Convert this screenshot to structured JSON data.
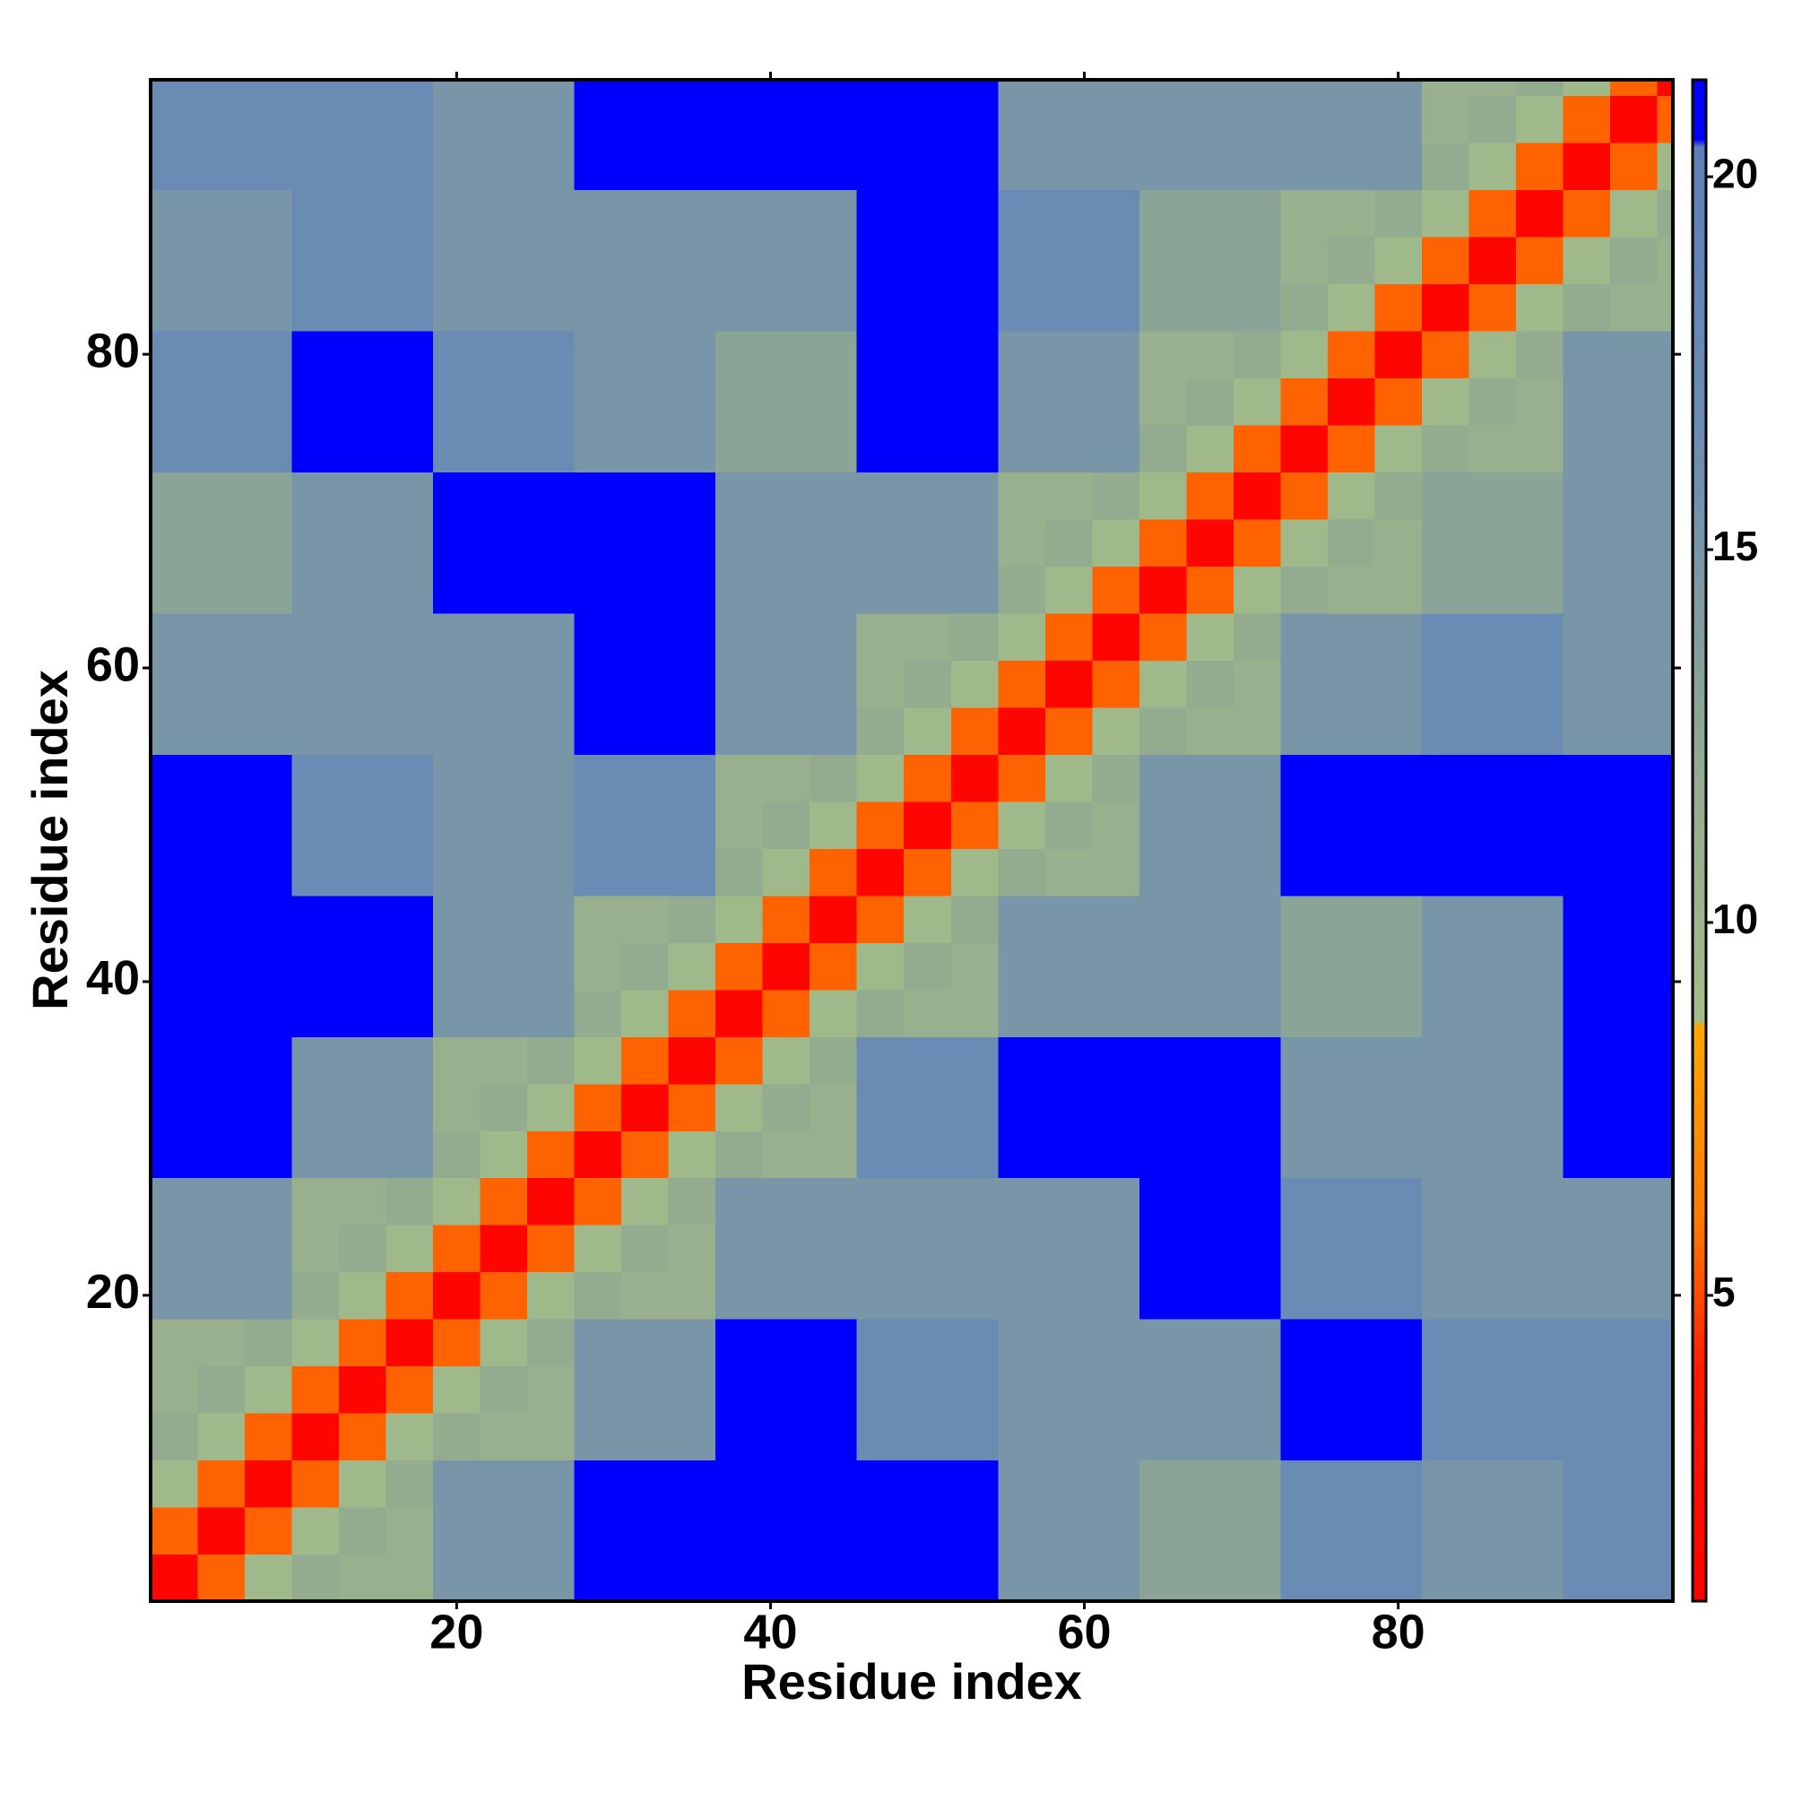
{
  "chart_data": {
    "type": "heatmap",
    "xlabel": "Residue index",
    "ylabel": "Residue index",
    "xlim": [
      0.5,
      97.5
    ],
    "ylim": [
      0.5,
      97.5
    ],
    "xticks": [
      20,
      40,
      60,
      80
    ],
    "yticks": [
      20,
      40,
      60,
      80
    ],
    "xbins": [
      0.5,
      3.5,
      6.5,
      9.5,
      12.5,
      15.5,
      18.5,
      21.5,
      24.5,
      27.5,
      30.5,
      33.5,
      36.5,
      39.5,
      42.5,
      45.5,
      48.5,
      51.5,
      54.5,
      57.5,
      60.5,
      63.5,
      66.5,
      69.5,
      72.5,
      75.5,
      78.5,
      81.5,
      84.5,
      87.5,
      90.5,
      93.5,
      96.5,
      97.5
    ],
    "ybins": [
      0.5,
      3.5,
      6.5,
      9.5,
      12.5,
      15.5,
      18.5,
      21.5,
      24.5,
      27.5,
      30.5,
      33.5,
      36.5,
      39.5,
      42.5,
      45.5,
      48.5,
      51.5,
      54.5,
      57.5,
      60.5,
      63.5,
      66.5,
      69.5,
      72.5,
      75.5,
      78.5,
      81.5,
      84.5,
      87.5,
      90.5,
      93.5,
      96.5,
      97.5
    ],
    "colorbar": {
      "clim": [
        0.9,
        21.3
      ],
      "ticks": [
        5,
        10,
        15,
        20
      ],
      "colorscale": [
        [
          0.9,
          "#ff0000"
        ],
        [
          4,
          "#ff1a00"
        ],
        [
          6,
          "#ff7a00"
        ],
        [
          8.6,
          "#ffa500"
        ],
        [
          8.7,
          "#a3bd8a"
        ],
        [
          12,
          "#93ab8f"
        ],
        [
          16,
          "#6f8fb0"
        ],
        [
          20.4,
          "#5a7fbb"
        ],
        [
          20.5,
          "#0000ff"
        ],
        [
          21.3,
          "#0000ff"
        ]
      ]
    },
    "z": [
      [
        1.5,
        5.5,
        9.5,
        12,
        11,
        11,
        15,
        15,
        15,
        21,
        21,
        21,
        21,
        21,
        21,
        21,
        21,
        21,
        15,
        15,
        15,
        13,
        13,
        13,
        17,
        17,
        17,
        15,
        15,
        15,
        17,
        17,
        17
      ],
      [
        5.5,
        1.5,
        5.5,
        9.5,
        12,
        11,
        15,
        15,
        15,
        21,
        21,
        21,
        21,
        21,
        21,
        21,
        21,
        21,
        15,
        15,
        15,
        13,
        13,
        13,
        17,
        17,
        17,
        15,
        15,
        15,
        17,
        17,
        17
      ],
      [
        9.5,
        5.5,
        1.5,
        5.5,
        9.5,
        12,
        15,
        15,
        15,
        21,
        21,
        21,
        21,
        21,
        21,
        21,
        21,
        21,
        15,
        15,
        15,
        13,
        13,
        13,
        17,
        17,
        17,
        15,
        15,
        15,
        17,
        17,
        17
      ],
      [
        12,
        9.5,
        5.5,
        1.5,
        5.5,
        9.5,
        12,
        11,
        11,
        15,
        15,
        15,
        21,
        21,
        21,
        17,
        17,
        17,
        15,
        15,
        15,
        15,
        15,
        15,
        21,
        21,
        21,
        17,
        17,
        17,
        17,
        17,
        17
      ],
      [
        11,
        12,
        9.5,
        5.5,
        1.5,
        5.5,
        9.5,
        12,
        11,
        15,
        15,
        15,
        21,
        21,
        21,
        17,
        17,
        17,
        15,
        15,
        15,
        15,
        15,
        15,
        21,
        21,
        21,
        17,
        17,
        17,
        17,
        17,
        17
      ],
      [
        11,
        11,
        12,
        9.5,
        5.5,
        1.5,
        5.5,
        9.5,
        12,
        15,
        15,
        15,
        21,
        21,
        21,
        17,
        17,
        17,
        15,
        15,
        15,
        15,
        15,
        15,
        21,
        21,
        21,
        17,
        17,
        17,
        17,
        17,
        17
      ],
      [
        15,
        15,
        15,
        12,
        9.5,
        5.5,
        1.5,
        5.5,
        9.5,
        12,
        11,
        11,
        15,
        15,
        15,
        15,
        15,
        15,
        15,
        15,
        15,
        21,
        21,
        21,
        17,
        17,
        17,
        15,
        15,
        15,
        15,
        15,
        15
      ],
      [
        15,
        15,
        15,
        11,
        12,
        9.5,
        5.5,
        1.5,
        5.5,
        9.5,
        12,
        11,
        15,
        15,
        15,
        15,
        15,
        15,
        15,
        15,
        15,
        21,
        21,
        21,
        17,
        17,
        17,
        15,
        15,
        15,
        15,
        15,
        15
      ],
      [
        15,
        15,
        15,
        11,
        11,
        12,
        9.5,
        5.5,
        1.5,
        5.5,
        9.5,
        12,
        15,
        15,
        15,
        15,
        15,
        15,
        15,
        15,
        15,
        21,
        21,
        21,
        17,
        17,
        17,
        15,
        15,
        15,
        15,
        15,
        15
      ],
      [
        21,
        21,
        21,
        15,
        15,
        15,
        12,
        9.5,
        5.5,
        1.5,
        5.5,
        9.5,
        12,
        11,
        11,
        17,
        17,
        17,
        21,
        21,
        21,
        21,
        21,
        21,
        15,
        15,
        15,
        15,
        15,
        15,
        21,
        21,
        21
      ],
      [
        21,
        21,
        21,
        15,
        15,
        15,
        11,
        12,
        9.5,
        5.5,
        1.5,
        5.5,
        9.5,
        12,
        11,
        17,
        17,
        17,
        21,
        21,
        21,
        21,
        21,
        21,
        15,
        15,
        15,
        15,
        15,
        15,
        21,
        21,
        21
      ],
      [
        21,
        21,
        21,
        15,
        15,
        15,
        11,
        11,
        12,
        9.5,
        5.5,
        1.5,
        5.5,
        9.5,
        12,
        17,
        17,
        17,
        21,
        21,
        21,
        21,
        21,
        21,
        15,
        15,
        15,
        15,
        15,
        15,
        21,
        21,
        21
      ],
      [
        21,
        21,
        21,
        21,
        21,
        21,
        15,
        15,
        15,
        12,
        9.5,
        5.5,
        1.5,
        5.5,
        9.5,
        12,
        11,
        11,
        15,
        15,
        15,
        15,
        15,
        15,
        13,
        13,
        13,
        15,
        15,
        15,
        21,
        21,
        21
      ],
      [
        21,
        21,
        21,
        21,
        21,
        21,
        15,
        15,
        15,
        11,
        12,
        9.5,
        5.5,
        1.5,
        5.5,
        9.5,
        12,
        11,
        15,
        15,
        15,
        15,
        15,
        15,
        13,
        13,
        13,
        15,
        15,
        15,
        21,
        21,
        21
      ],
      [
        21,
        21,
        21,
        21,
        21,
        21,
        15,
        15,
        15,
        11,
        11,
        12,
        9.5,
        5.5,
        1.5,
        5.5,
        9.5,
        12,
        15,
        15,
        15,
        15,
        15,
        15,
        13,
        13,
        13,
        15,
        15,
        15,
        21,
        21,
        21
      ],
      [
        21,
        21,
        21,
        17,
        17,
        17,
        15,
        15,
        15,
        17,
        17,
        17,
        12,
        9.5,
        5.5,
        1.5,
        5.5,
        9.5,
        12,
        11,
        11,
        15,
        15,
        15,
        21,
        21,
        21,
        21,
        21,
        21,
        21,
        21,
        21
      ],
      [
        21,
        21,
        21,
        17,
        17,
        17,
        15,
        15,
        15,
        17,
        17,
        17,
        11,
        12,
        9.5,
        5.5,
        1.5,
        5.5,
        9.5,
        12,
        11,
        15,
        15,
        15,
        21,
        21,
        21,
        21,
        21,
        21,
        21,
        21,
        21
      ],
      [
        21,
        21,
        21,
        17,
        17,
        17,
        15,
        15,
        15,
        17,
        17,
        17,
        11,
        11,
        12,
        9.5,
        5.5,
        1.5,
        5.5,
        9.5,
        12,
        15,
        15,
        15,
        21,
        21,
        21,
        21,
        21,
        21,
        21,
        21,
        21
      ],
      [
        15,
        15,
        15,
        15,
        15,
        15,
        15,
        15,
        15,
        21,
        21,
        21,
        15,
        15,
        15,
        12,
        9.5,
        5.5,
        1.5,
        5.5,
        9.5,
        12,
        11,
        11,
        15,
        15,
        15,
        17,
        17,
        17,
        15,
        15,
        15
      ],
      [
        15,
        15,
        15,
        15,
        15,
        15,
        15,
        15,
        15,
        21,
        21,
        21,
        15,
        15,
        15,
        11,
        12,
        9.5,
        5.5,
        1.5,
        5.5,
        9.5,
        12,
        11,
        15,
        15,
        15,
        17,
        17,
        17,
        15,
        15,
        15
      ],
      [
        15,
        15,
        15,
        15,
        15,
        15,
        15,
        15,
        15,
        21,
        21,
        21,
        15,
        15,
        15,
        11,
        11,
        12,
        9.5,
        5.5,
        1.5,
        5.5,
        9.5,
        12,
        15,
        15,
        15,
        17,
        17,
        17,
        15,
        15,
        15
      ],
      [
        13,
        13,
        13,
        15,
        15,
        15,
        21,
        21,
        21,
        21,
        21,
        21,
        15,
        15,
        15,
        15,
        15,
        15,
        12,
        9.5,
        5.5,
        1.5,
        5.5,
        9.5,
        12,
        11,
        11,
        13,
        13,
        13,
        15,
        15,
        15
      ],
      [
        13,
        13,
        13,
        15,
        15,
        15,
        21,
        21,
        21,
        21,
        21,
        21,
        15,
        15,
        15,
        15,
        15,
        15,
        11,
        12,
        9.5,
        5.5,
        1.5,
        5.5,
        9.5,
        12,
        11,
        13,
        13,
        13,
        15,
        15,
        15
      ],
      [
        13,
        13,
        13,
        15,
        15,
        15,
        21,
        21,
        21,
        21,
        21,
        21,
        15,
        15,
        15,
        15,
        15,
        15,
        11,
        11,
        12,
        9.5,
        5.5,
        1.5,
        5.5,
        9.5,
        12,
        13,
        13,
        13,
        15,
        15,
        15
      ],
      [
        17,
        17,
        17,
        21,
        21,
        21,
        17,
        17,
        17,
        15,
        15,
        15,
        13,
        13,
        13,
        21,
        21,
        21,
        15,
        15,
        15,
        12,
        9.5,
        5.5,
        1.5,
        5.5,
        9.5,
        12,
        11,
        11,
        15,
        15,
        15
      ],
      [
        17,
        17,
        17,
        21,
        21,
        21,
        17,
        17,
        17,
        15,
        15,
        15,
        13,
        13,
        13,
        21,
        21,
        21,
        15,
        15,
        15,
        11,
        12,
        9.5,
        5.5,
        1.5,
        5.5,
        9.5,
        12,
        11,
        15,
        15,
        15
      ],
      [
        17,
        17,
        17,
        21,
        21,
        21,
        17,
        17,
        17,
        15,
        15,
        15,
        13,
        13,
        13,
        21,
        21,
        21,
        15,
        15,
        15,
        11,
        11,
        12,
        9.5,
        5.5,
        1.5,
        5.5,
        9.5,
        12,
        15,
        15,
        15
      ],
      [
        15,
        15,
        15,
        17,
        17,
        17,
        15,
        15,
        15,
        15,
        15,
        15,
        15,
        15,
        15,
        21,
        21,
        21,
        17,
        17,
        17,
        13,
        13,
        13,
        12,
        9.5,
        5.5,
        1.5,
        5.5,
        9.5,
        12,
        11,
        11
      ],
      [
        15,
        15,
        15,
        17,
        17,
        17,
        15,
        15,
        15,
        15,
        15,
        15,
        15,
        15,
        15,
        21,
        21,
        21,
        17,
        17,
        17,
        13,
        13,
        13,
        11,
        12,
        9.5,
        5.5,
        1.5,
        5.5,
        9.5,
        12,
        11
      ],
      [
        15,
        15,
        15,
        17,
        17,
        17,
        15,
        15,
        15,
        15,
        15,
        15,
        15,
        15,
        15,
        21,
        21,
        21,
        17,
        17,
        17,
        13,
        13,
        13,
        11,
        11,
        12,
        9.5,
        5.5,
        1.5,
        5.5,
        9.5,
        12
      ],
      [
        17,
        17,
        17,
        17,
        17,
        17,
        15,
        15,
        15,
        21,
        21,
        21,
        21,
        21,
        21,
        21,
        21,
        21,
        15,
        15,
        15,
        15,
        15,
        15,
        15,
        15,
        15,
        12,
        9.5,
        5.5,
        1.5,
        5.5,
        9.5
      ],
      [
        17,
        17,
        17,
        17,
        17,
        17,
        15,
        15,
        15,
        21,
        21,
        21,
        21,
        21,
        21,
        21,
        21,
        21,
        15,
        15,
        15,
        15,
        15,
        15,
        15,
        15,
        15,
        11,
        12,
        9.5,
        5.5,
        1.5,
        5.5
      ],
      [
        17,
        17,
        17,
        17,
        17,
        17,
        15,
        15,
        15,
        21,
        21,
        21,
        21,
        21,
        21,
        21,
        21,
        21,
        15,
        15,
        15,
        15,
        15,
        15,
        15,
        15,
        15,
        11,
        11,
        12,
        9.5,
        5.5,
        1.5
      ]
    ]
  }
}
